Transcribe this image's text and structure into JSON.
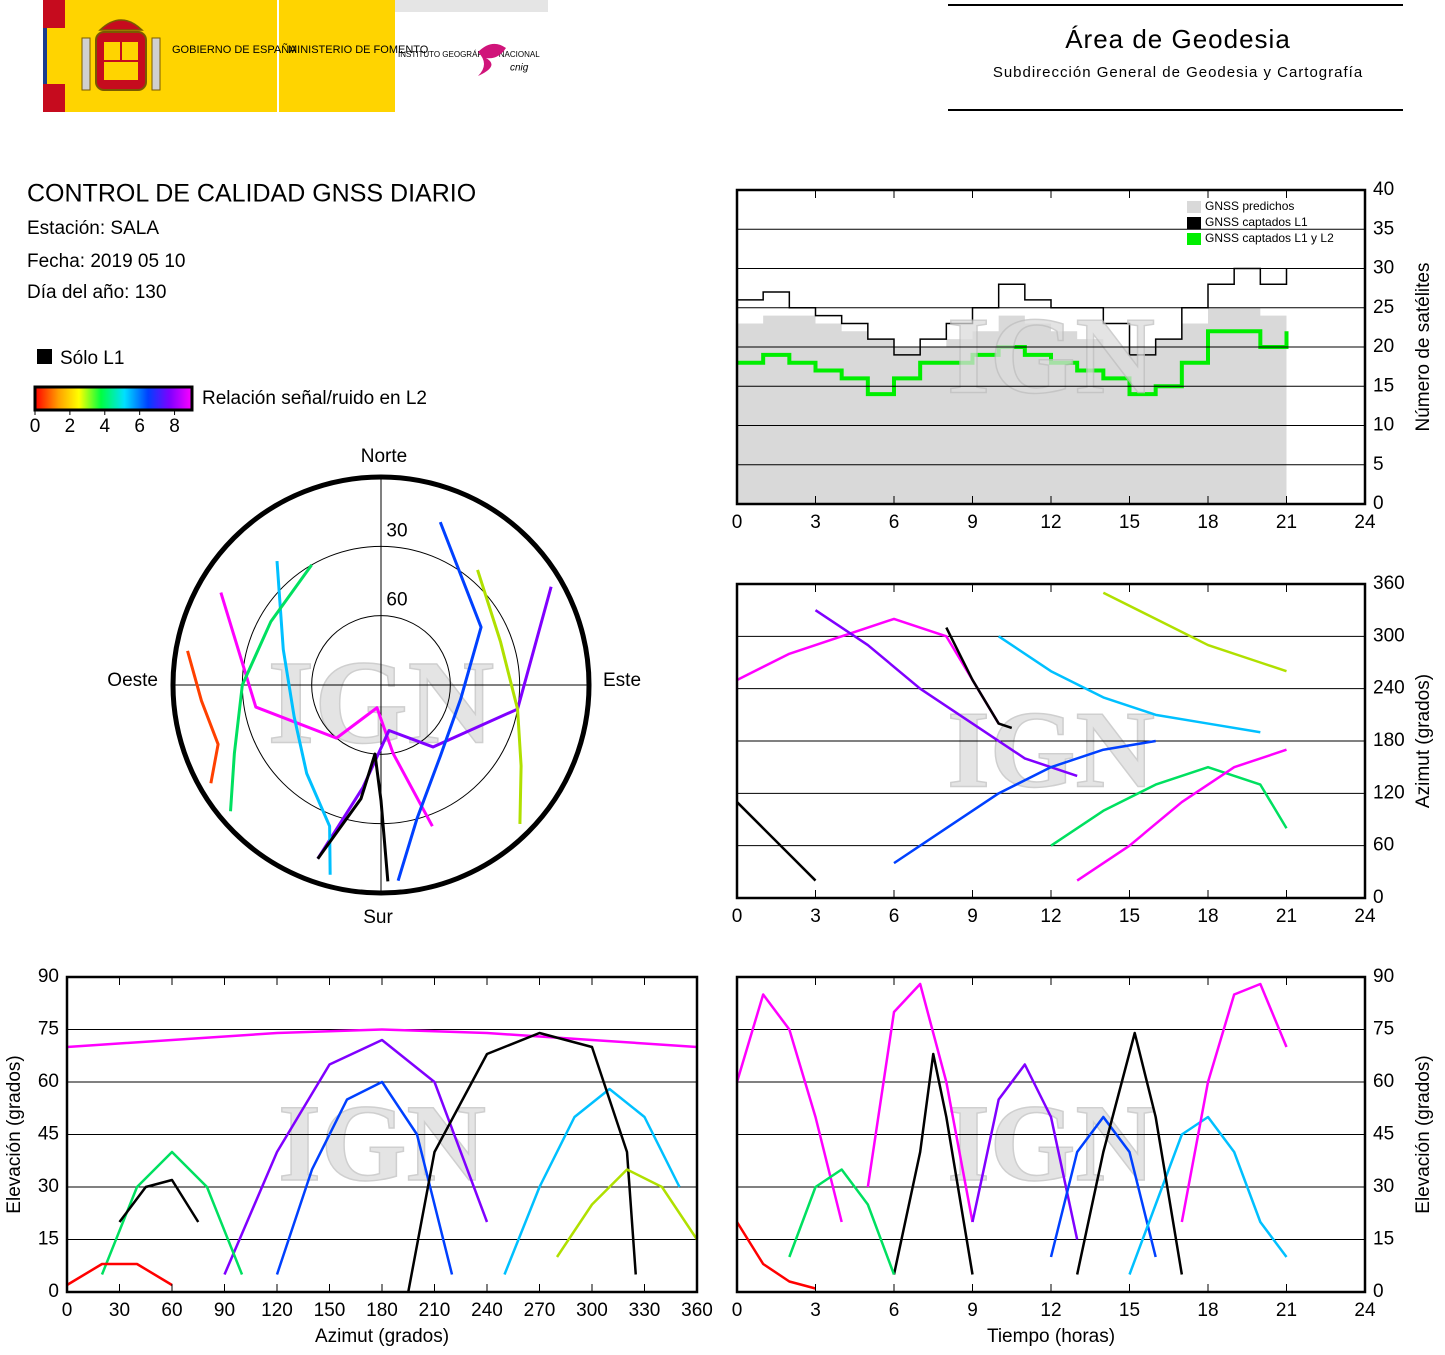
{
  "header": {
    "government": "GOBIERNO DE ESPAÑA",
    "ministry": "MINISTERIO DE FOMENTO",
    "institute": "INSTITUTO GEOGRÁFICO NACIONAL",
    "cnig": "cnig",
    "title": "Área de Geodesia",
    "subtitle": "Subdirección General de Geodesia y Cartografía"
  },
  "report": {
    "title": "CONTROL DE CALIDAD GNSS DIARIO",
    "station": "Estación: SALA",
    "date": "Fecha: 2019 05 10",
    "day_of_year": "Día del año: 130"
  },
  "color_legend": {
    "l1_only": "Sólo L1",
    "snr_label": "Relación señal/ruido en L2",
    "snr_lim": [
      0,
      9
    ],
    "snr_ticks": [
      0,
      2,
      4,
      6,
      8
    ]
  },
  "chart_data": [
    {
      "type": "polar",
      "directions": {
        "north": "Norte",
        "south": "Sur",
        "east": "Este",
        "west": "Oeste"
      },
      "rticks": [
        30,
        60
      ],
      "watermark": "IGN",
      "tracks": [
        {
          "color": "#ff00ff",
          "azimuth": [
            300,
            260,
            220,
            190,
            170,
            160
          ],
          "elevation": [
            10,
            35,
            60,
            80,
            60,
            25
          ]
        },
        {
          "color": "#8000ff",
          "azimuth": [
            60,
            100,
            140,
            170,
            190,
            200
          ],
          "elevation": [
            5,
            30,
            55,
            70,
            45,
            10
          ]
        },
        {
          "color": "#0040ff",
          "azimuth": [
            20,
            60,
            100,
            140,
            165,
            175
          ],
          "elevation": [
            15,
            40,
            55,
            50,
            30,
            5
          ]
        },
        {
          "color": "#00c0ff",
          "azimuth": [
            320,
            290,
            250,
            220,
            200,
            195
          ],
          "elevation": [
            20,
            45,
            50,
            40,
            25,
            5
          ]
        },
        {
          "color": "#00e060",
          "azimuth": [
            330,
            300,
            270,
            245,
            230
          ],
          "elevation": [
            30,
            35,
            30,
            20,
            5
          ]
        },
        {
          "color": "#b0e000",
          "azimuth": [
            40,
            70,
            100,
            120,
            135
          ],
          "elevation": [
            25,
            35,
            30,
            20,
            5
          ]
        },
        {
          "color": "#000000",
          "azimuth": [
            200,
            190,
            185,
            180,
            178
          ],
          "elevation": [
            10,
            40,
            60,
            40,
            5
          ]
        },
        {
          "color": "#ff4000",
          "azimuth": [
            280,
            265,
            250,
            240
          ],
          "elevation": [
            5,
            12,
            15,
            5
          ]
        }
      ]
    },
    {
      "type": "line",
      "ylabel": "Número de satélites",
      "yaxis_side": "right",
      "xlim": [
        0,
        24
      ],
      "xticks": [
        0,
        3,
        6,
        9,
        12,
        15,
        18,
        21,
        24
      ],
      "ylim": [
        0,
        40
      ],
      "yticks": [
        0,
        5,
        10,
        15,
        20,
        25,
        30,
        35,
        40
      ],
      "grid": true,
      "step": true,
      "legend": "top-right",
      "watermark": "IGN",
      "x": [
        0,
        1,
        2,
        3,
        4,
        5,
        6,
        7,
        8,
        9,
        10,
        11,
        12,
        13,
        14,
        15,
        16,
        17,
        18,
        19,
        20,
        21
      ],
      "series": [
        {
          "name": "GNSS predichos",
          "color": "#d9d9d9",
          "kind": "area",
          "values": [
            23,
            24,
            24,
            23,
            22,
            21,
            20,
            20,
            21,
            22,
            24,
            23,
            22,
            21,
            20,
            20,
            21,
            23,
            25,
            25,
            24,
            22
          ]
        },
        {
          "name": "GNSS captados L1",
          "color": "#000000",
          "values": [
            26,
            27,
            25,
            24,
            23,
            21,
            19,
            21,
            23,
            25,
            28,
            26,
            25,
            25,
            23,
            19,
            21,
            25,
            28,
            30,
            28,
            30
          ]
        },
        {
          "name": "GNSS captados L1 y L2",
          "color": "#00ee00",
          "values": [
            18,
            19,
            18,
            17,
            16,
            14,
            16,
            18,
            18,
            19,
            20,
            19,
            18,
            17,
            16,
            14,
            15,
            18,
            22,
            22,
            20,
            22
          ]
        }
      ]
    },
    {
      "type": "line",
      "ylabel": "Azimut (grados)",
      "yaxis_side": "right",
      "xlim": [
        0,
        24
      ],
      "xticks": [
        0,
        3,
        6,
        9,
        12,
        15,
        18,
        21,
        24
      ],
      "ylim": [
        0,
        360
      ],
      "yticks": [
        0,
        60,
        120,
        180,
        240,
        300,
        360
      ],
      "grid": true,
      "watermark": "IGN",
      "tracks": [
        {
          "color": "#ff00ff",
          "x": [
            0,
            2,
            4,
            6,
            8,
            10
          ],
          "y": [
            250,
            280,
            300,
            320,
            300,
            200
          ]
        },
        {
          "color": "#8000ff",
          "x": [
            3,
            5,
            7,
            9,
            11,
            13
          ],
          "y": [
            330,
            290,
            240,
            200,
            160,
            140
          ]
        },
        {
          "color": "#0040ff",
          "x": [
            6,
            8,
            10,
            12,
            14,
            16
          ],
          "y": [
            40,
            80,
            120,
            150,
            170,
            180
          ]
        },
        {
          "color": "#00c0ff",
          "x": [
            10,
            12,
            14,
            16,
            18,
            20
          ],
          "y": [
            300,
            260,
            230,
            210,
            200,
            190
          ]
        },
        {
          "color": "#00e060",
          "x": [
            12,
            14,
            16,
            18,
            20,
            21
          ],
          "y": [
            60,
            100,
            130,
            150,
            130,
            80
          ]
        },
        {
          "color": "#000000",
          "x": [
            0,
            1,
            2,
            3
          ],
          "y": [
            110,
            80,
            50,
            20
          ]
        },
        {
          "color": "#000000",
          "x": [
            8,
            9,
            10,
            10.5
          ],
          "y": [
            310,
            250,
            200,
            195
          ]
        },
        {
          "color": "#b0e000",
          "x": [
            14,
            16,
            18,
            20,
            21
          ],
          "y": [
            350,
            320,
            290,
            270,
            260
          ]
        },
        {
          "color": "#ff00ff",
          "x": [
            13,
            15,
            17,
            19,
            21
          ],
          "y": [
            20,
            60,
            110,
            150,
            170
          ]
        }
      ]
    },
    {
      "type": "line",
      "xlabel": "Azimut (grados)",
      "ylabel": "Elevación (grados)",
      "yaxis_side": "left",
      "xlim": [
        0,
        360
      ],
      "xticks": [
        0,
        30,
        60,
        90,
        120,
        150,
        180,
        210,
        240,
        270,
        300,
        330,
        360
      ],
      "ylim": [
        0,
        90
      ],
      "yticks": [
        0,
        15,
        30,
        45,
        60,
        75,
        90
      ],
      "grid": true,
      "watermark": "IGN",
      "tracks": [
        {
          "color": "#ff00ff",
          "x": [
            0,
            60,
            120,
            180,
            240,
            300,
            360
          ],
          "y": [
            70,
            72,
            74,
            75,
            74,
            72,
            70
          ]
        },
        {
          "color": "#8000ff",
          "x": [
            90,
            120,
            150,
            180,
            210,
            240
          ],
          "y": [
            5,
            40,
            65,
            72,
            60,
            20
          ]
        },
        {
          "color": "#0040ff",
          "x": [
            120,
            140,
            160,
            180,
            200,
            220
          ],
          "y": [
            5,
            35,
            55,
            60,
            45,
            5
          ]
        },
        {
          "color": "#00c0ff",
          "x": [
            250,
            270,
            290,
            310,
            330,
            350
          ],
          "y": [
            5,
            30,
            50,
            58,
            50,
            30
          ]
        },
        {
          "color": "#00e060",
          "x": [
            20,
            40,
            60,
            80,
            100
          ],
          "y": [
            5,
            30,
            40,
            30,
            5
          ]
        },
        {
          "color": "#000000",
          "x": [
            195,
            210,
            240,
            270,
            300,
            320,
            325
          ],
          "y": [
            0,
            40,
            68,
            74,
            70,
            40,
            5
          ]
        },
        {
          "color": "#000000",
          "x": [
            30,
            45,
            60,
            75
          ],
          "y": [
            20,
            30,
            32,
            20
          ]
        },
        {
          "color": "#ff0000",
          "x": [
            0,
            20,
            40,
            60
          ],
          "y": [
            2,
            8,
            8,
            2
          ]
        },
        {
          "color": "#b0e000",
          "x": [
            280,
            300,
            320,
            340,
            360
          ],
          "y": [
            10,
            25,
            35,
            30,
            15
          ]
        }
      ]
    },
    {
      "type": "line",
      "xlabel": "Tiempo (horas)",
      "ylabel": "Elevación (grados)",
      "yaxis_side": "right",
      "xlim": [
        0,
        24
      ],
      "xticks": [
        0,
        3,
        6,
        9,
        12,
        15,
        18,
        21,
        24
      ],
      "ylim": [
        0,
        90
      ],
      "yticks": [
        0,
        15,
        30,
        45,
        60,
        75,
        90
      ],
      "grid": true,
      "watermark": "IGN",
      "tracks": [
        {
          "color": "#ff00ff",
          "x": [
            0,
            1,
            2,
            3,
            4
          ],
          "y": [
            60,
            85,
            75,
            50,
            20
          ]
        },
        {
          "color": "#ff00ff",
          "x": [
            5,
            6,
            7,
            8,
            9
          ],
          "y": [
            30,
            80,
            88,
            60,
            20
          ]
        },
        {
          "color": "#8000ff",
          "x": [
            9,
            10,
            11,
            12,
            13
          ],
          "y": [
            20,
            55,
            65,
            50,
            15
          ]
        },
        {
          "color": "#0040ff",
          "x": [
            12,
            13,
            14,
            15,
            16
          ],
          "y": [
            10,
            40,
            50,
            40,
            10
          ]
        },
        {
          "color": "#00c0ff",
          "x": [
            15,
            16,
            17,
            18,
            19,
            20,
            21
          ],
          "y": [
            5,
            25,
            45,
            50,
            40,
            20,
            10
          ]
        },
        {
          "color": "#000000",
          "x": [
            6,
            7,
            7.5,
            8,
            9
          ],
          "y": [
            5,
            40,
            68,
            50,
            5
          ]
        },
        {
          "color": "#000000",
          "x": [
            13,
            14,
            15.2,
            16,
            17
          ],
          "y": [
            5,
            40,
            74,
            50,
            5
          ]
        },
        {
          "color": "#00e060",
          "x": [
            2,
            3,
            4,
            5,
            6
          ],
          "y": [
            10,
            30,
            35,
            25,
            5
          ]
        },
        {
          "color": "#ff0000",
          "x": [
            0,
            1,
            2,
            3
          ],
          "y": [
            20,
            8,
            3,
            1
          ]
        },
        {
          "color": "#ff00ff",
          "x": [
            17,
            18,
            19,
            20,
            21
          ],
          "y": [
            20,
            60,
            85,
            88,
            70
          ]
        }
      ]
    }
  ]
}
